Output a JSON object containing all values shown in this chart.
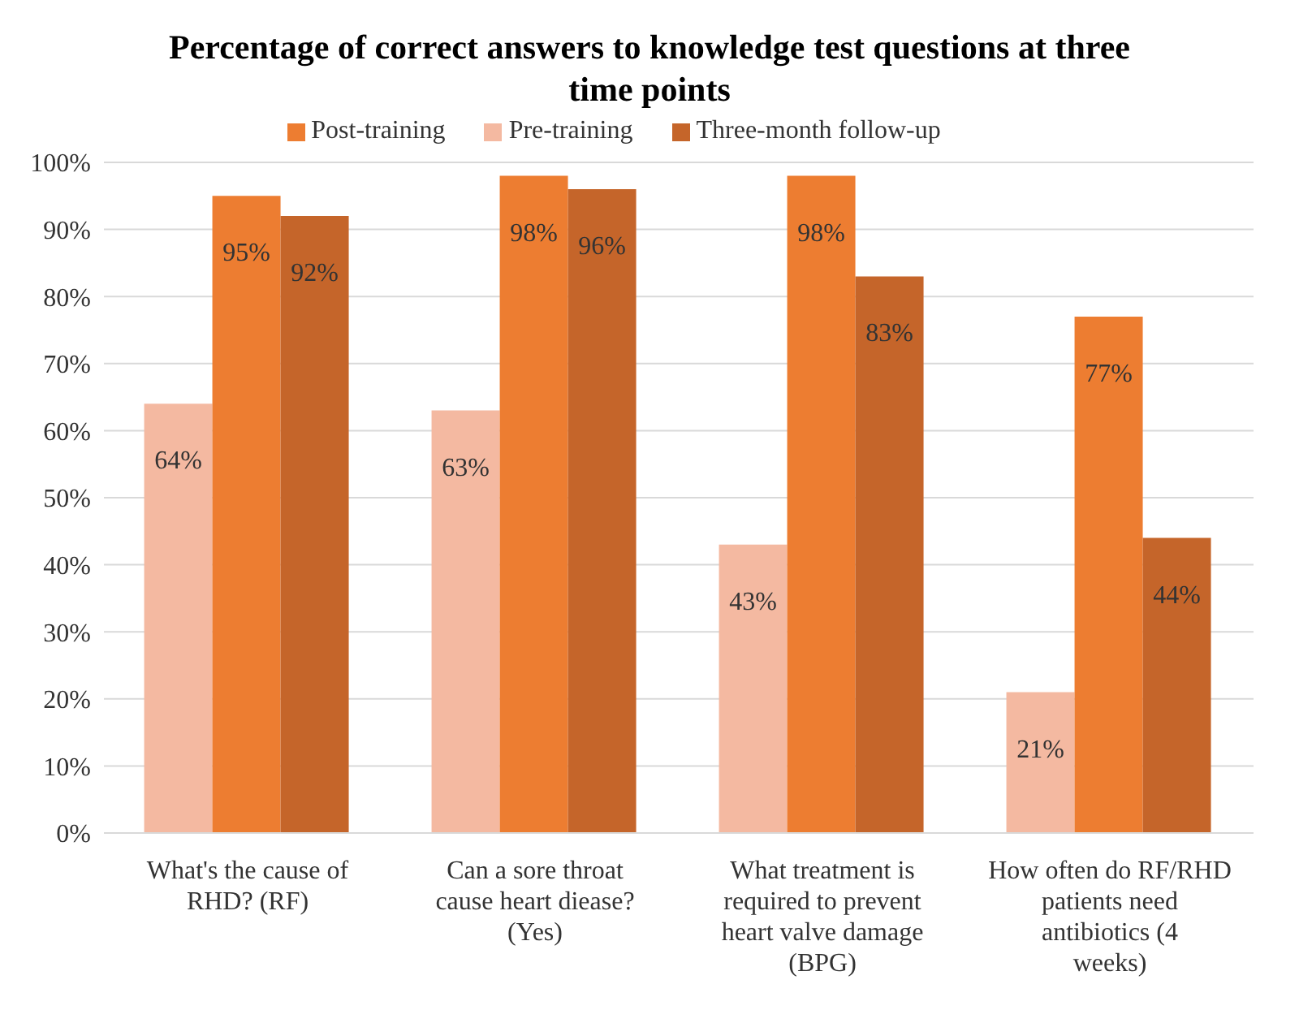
{
  "chart_data": {
    "type": "bar",
    "title": "Percentage of correct answers to knowledge test questions at three time points",
    "categories": [
      "What's the cause of RHD? (RF)",
      "Can a sore throat cause heart diease? (Yes)",
      "What treatment is required to prevent heart valve damage (BPG)",
      "How often do RF/RHD patients need antibiotics (4 weeks)"
    ],
    "series": [
      {
        "name": "Pre-training",
        "color": "#f4b9a1",
        "values": [
          64,
          63,
          43,
          21
        ],
        "value_labels": [
          "64%",
          "63%",
          "43%",
          "21%"
        ]
      },
      {
        "name": "Post-training",
        "color": "#ed7d31",
        "values": [
          95,
          98,
          98,
          77
        ],
        "value_labels": [
          "95%",
          "98%",
          "98%",
          "77%"
        ]
      },
      {
        "name": "Three-month follow-up",
        "color": "#c5652a",
        "values": [
          92,
          96,
          83,
          44
        ],
        "value_labels": [
          "92%",
          "96%",
          "83%",
          "44%"
        ]
      }
    ],
    "ylim": [
      0,
      100
    ],
    "yticks": [
      {
        "value": 0,
        "label": "0%"
      },
      {
        "value": 10,
        "label": "10%"
      },
      {
        "value": 20,
        "label": "20%"
      },
      {
        "value": 30,
        "label": "30%"
      },
      {
        "value": 40,
        "label": "40%"
      },
      {
        "value": 50,
        "label": "50%"
      },
      {
        "value": 60,
        "label": "60%"
      },
      {
        "value": 70,
        "label": "70%"
      },
      {
        "value": 80,
        "label": "80%"
      },
      {
        "value": 90,
        "label": "90%"
      },
      {
        "value": 100,
        "label": "100%"
      }
    ],
    "grid": "y",
    "legend": "top"
  }
}
